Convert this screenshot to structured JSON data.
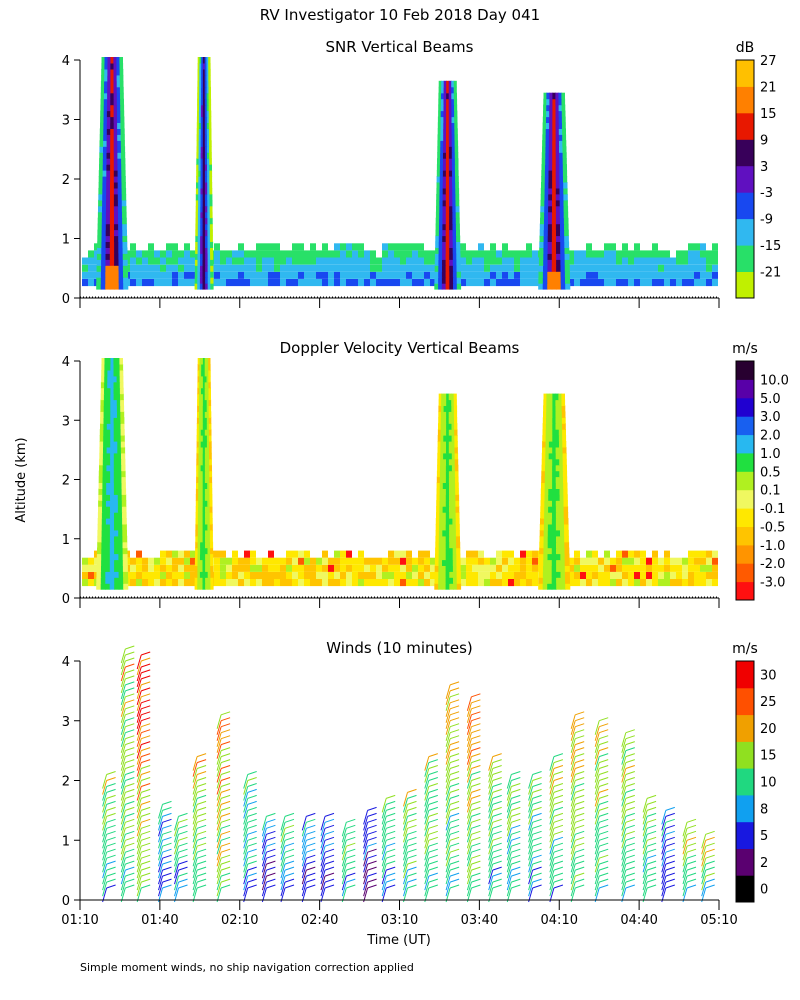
{
  "page": {
    "title": "RV Investigator  10 Feb 2018 Day 041",
    "footnote": "Simple moment winds, no ship navigation correction applied",
    "ylabel": "Altitude (km)",
    "xlabel": "Time (UT)"
  },
  "chart_data": [
    {
      "type": "heatmap",
      "title": "SNR Vertical Beams",
      "x_range": [
        "01:10",
        "05:10"
      ],
      "ylim": [
        0,
        4
      ],
      "yticks": [
        0,
        1,
        2,
        3,
        4
      ],
      "colorbar": {
        "unit": "dB",
        "levels": [
          "-21",
          "-15",
          "-9",
          "-3",
          "3",
          "9",
          "15",
          "21",
          "27"
        ],
        "colors": [
          "#c0f000",
          "#28e068",
          "#30b8f0",
          "#1848f0",
          "#6010c0",
          "#38005a",
          "#e81800",
          "#ff8000",
          "#ffc000"
        ]
      },
      "features": [
        {
          "time_span": [
            "01:16",
            "01:28"
          ],
          "top_km": 4.0,
          "core_min_dB": 9,
          "max_dB": 15
        },
        {
          "time_span": [
            "01:53",
            "02:00"
          ],
          "top_km": 4.0,
          "core_min_dB": 3
        },
        {
          "time_span": [
            "03:23",
            "03:33"
          ],
          "top_km": 3.6,
          "core_min_dB": 9
        },
        {
          "time_span": [
            "04:02",
            "04:14"
          ],
          "top_km": 3.4,
          "core_min_dB": 9,
          "max_dB": 15
        },
        {
          "time_span": [
            "01:10",
            "05:10"
          ],
          "top_km": 0.9,
          "note": "low level layer -21 to -9 dB"
        }
      ]
    },
    {
      "type": "heatmap",
      "title": "Doppler Velocity Vertical Beams",
      "x_range": [
        "01:10",
        "05:10"
      ],
      "ylim": [
        0,
        4
      ],
      "yticks": [
        0,
        1,
        2,
        3,
        4
      ],
      "colorbar": {
        "unit": "m/s",
        "levels": [
          "-3.0",
          "-2.0",
          "-1.0",
          "-0.5",
          "-0.1",
          "0.1",
          "0.5",
          "1.0",
          "2.0",
          "3.0",
          "5.0",
          "10.0"
        ],
        "colors": [
          "#ff1010",
          "#ff5a00",
          "#ff9400",
          "#ffc400",
          "#ffe800",
          "#f0f860",
          "#b0f020",
          "#20e040",
          "#28b8f0",
          "#1860f0",
          "#2000d0",
          "#5800a8",
          "#280030"
        ]
      },
      "features": [
        {
          "time_span": [
            "01:16",
            "01:28"
          ],
          "top_km": 4.0,
          "core_ms": 1.0
        },
        {
          "time_span": [
            "01:53",
            "02:00"
          ],
          "top_km": 4.0,
          "core_ms": 0.5
        },
        {
          "time_span": [
            "03:23",
            "03:33"
          ],
          "top_km": 3.4,
          "core_ms": 0.5
        },
        {
          "time_span": [
            "04:02",
            "04:14"
          ],
          "top_km": 3.4,
          "core_ms": 0.5
        },
        {
          "time_span": [
            "01:10",
            "05:10"
          ],
          "top_km": 0.8,
          "core_ms": -0.5
        }
      ]
    },
    {
      "type": "scatter",
      "title": "Winds (10 minutes)",
      "x_range": [
        "01:10",
        "05:10"
      ],
      "xticks": [
        "01:10",
        "01:40",
        "02:10",
        "02:40",
        "03:10",
        "03:40",
        "04:10",
        "04:40",
        "05:10"
      ],
      "ylim": [
        0,
        4
      ],
      "yticks": [
        0,
        1,
        2,
        3,
        4
      ],
      "colorbar": {
        "unit": "m/s",
        "levels": [
          "0",
          "2",
          "5",
          "8",
          "10",
          "15",
          "20",
          "25",
          "30"
        ],
        "colors": [
          "#000000",
          "#5a0070",
          "#1818e0",
          "#10a0f0",
          "#20d880",
          "#90e020",
          "#f0a000",
          "#ff5000",
          "#f00000"
        ]
      },
      "columns": [
        {
          "t": "01:20",
          "top_km": 2.2,
          "speed": 15
        },
        {
          "t": "01:27",
          "top_km": 4.3,
          "speed": 18
        },
        {
          "t": "01:33",
          "top_km": 4.2,
          "speed": 26
        },
        {
          "t": "01:41",
          "top_km": 1.7,
          "speed": 10
        },
        {
          "t": "01:47",
          "top_km": 1.5,
          "speed": 12
        },
        {
          "t": "01:54",
          "top_km": 2.5,
          "speed": 17
        },
        {
          "t": "02:03",
          "top_km": 3.2,
          "speed": 21
        },
        {
          "t": "02:13",
          "top_km": 2.2,
          "speed": 12
        },
        {
          "t": "02:20",
          "top_km": 1.5,
          "speed": 8
        },
        {
          "t": "02:27",
          "top_km": 1.5,
          "speed": 12
        },
        {
          "t": "02:35",
          "top_km": 1.5,
          "speed": 8
        },
        {
          "t": "02:42",
          "top_km": 1.5,
          "speed": 8
        },
        {
          "t": "02:50",
          "top_km": 1.4,
          "speed": 13
        },
        {
          "t": "02:58",
          "top_km": 1.6,
          "speed": 7
        },
        {
          "t": "03:05",
          "top_km": 1.8,
          "speed": 14
        },
        {
          "t": "03:13",
          "top_km": 1.9,
          "speed": 16
        },
        {
          "t": "03:21",
          "top_km": 2.5,
          "speed": 16
        },
        {
          "t": "03:29",
          "top_km": 3.7,
          "speed": 17
        },
        {
          "t": "03:37",
          "top_km": 3.5,
          "speed": 20
        },
        {
          "t": "03:45",
          "top_km": 2.5,
          "speed": 15
        },
        {
          "t": "03:52",
          "top_km": 2.2,
          "speed": 14
        },
        {
          "t": "04:00",
          "top_km": 2.2,
          "speed": 13
        },
        {
          "t": "04:08",
          "top_km": 2.5,
          "speed": 16
        },
        {
          "t": "04:16",
          "top_km": 3.2,
          "speed": 19
        },
        {
          "t": "04:25",
          "top_km": 3.1,
          "speed": 17
        },
        {
          "t": "04:35",
          "top_km": 2.9,
          "speed": 17
        },
        {
          "t": "04:43",
          "top_km": 1.8,
          "speed": 15
        },
        {
          "t": "04:50",
          "top_km": 1.6,
          "speed": 9
        },
        {
          "t": "04:58",
          "top_km": 1.4,
          "speed": 15
        },
        {
          "t": "05:05",
          "top_km": 1.1,
          "speed": 16
        }
      ]
    }
  ]
}
